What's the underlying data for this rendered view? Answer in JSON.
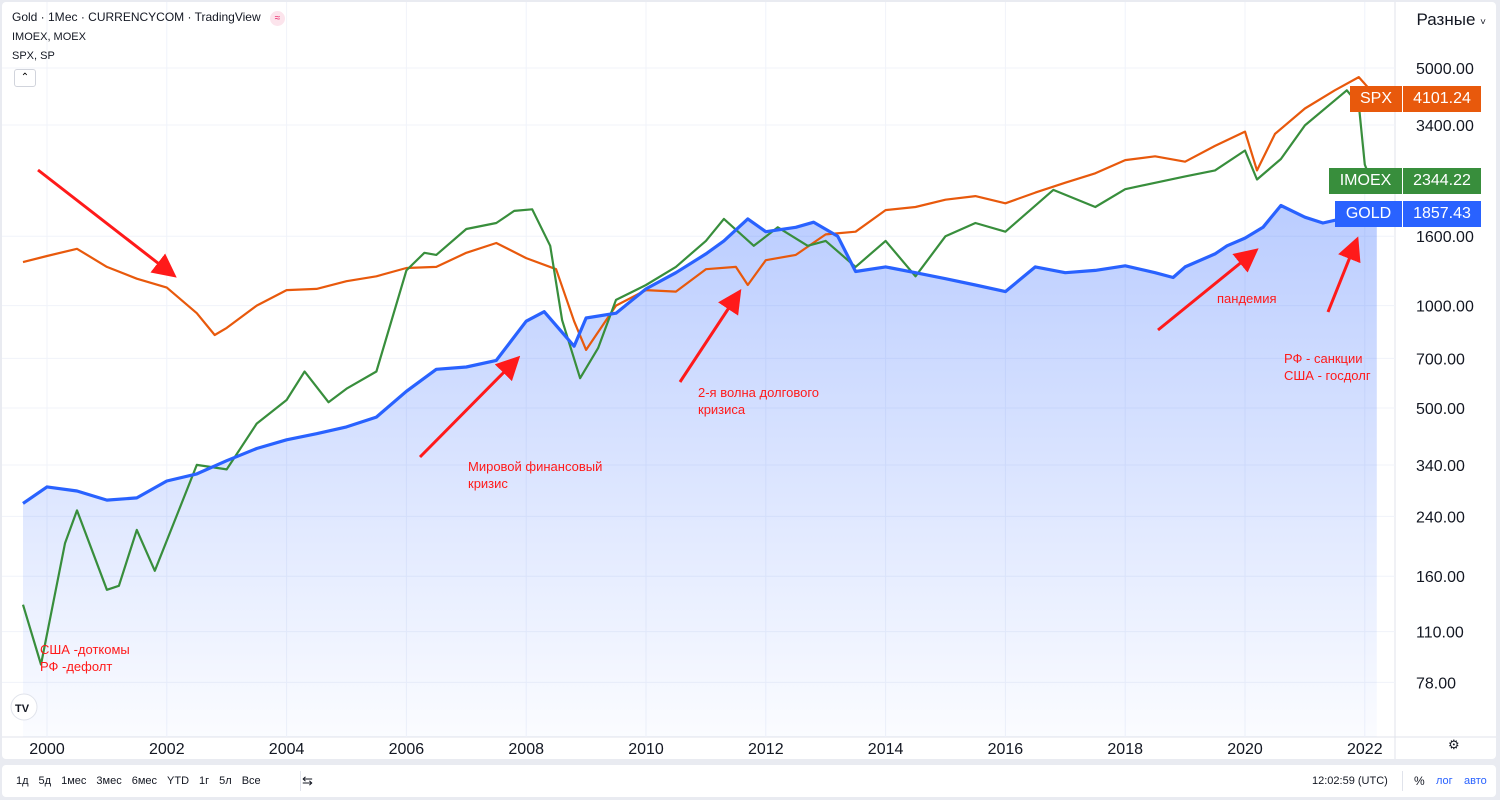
{
  "legend": {
    "main": "Gold · 1Мес · CURRENCYCOM · TradingView",
    "series2": "IMOEX, MOEX",
    "series3": "SPX, SP",
    "scale_mode": "Разные"
  },
  "colors": {
    "gold": "#2962ff",
    "spx": "#e8590c",
    "imoex": "#388e3c",
    "annotation": "#ff1a1a"
  },
  "chart_data": {
    "type": "line",
    "y_scale": "log",
    "ylim": [
      70,
      5600
    ],
    "xlim": [
      1999.55,
      2022.5
    ],
    "y_ticks": [
      "5000.00",
      "3400.00",
      "1600.00",
      "1000.00",
      "700.00",
      "500.00",
      "340.00",
      "240.00",
      "160.00",
      "110.00",
      "78.00"
    ],
    "x_ticks": [
      "2000",
      "2002",
      "2004",
      "2006",
      "2008",
      "2010",
      "2012",
      "2014",
      "2016",
      "2018",
      "2020",
      "2022"
    ],
    "grid": true,
    "series": [
      {
        "name": "GOLD",
        "last": "1857.43",
        "color": "#2962ff",
        "x": [
          1999.6,
          2000,
          2000.5,
          2001,
          2001.5,
          2002,
          2002.5,
          2003,
          2003.5,
          2004,
          2004.5,
          2005,
          2005.5,
          2006,
          2006.5,
          2007,
          2007.5,
          2008,
          2008.3,
          2008.8,
          2009,
          2009.5,
          2010,
          2010.5,
          2011,
          2011.3,
          2011.7,
          2012,
          2012.5,
          2012.8,
          2013.2,
          2013.5,
          2014,
          2014.5,
          2015,
          2015.5,
          2016,
          2016.5,
          2017,
          2017.5,
          2018,
          2018.5,
          2018.8,
          2019,
          2019.5,
          2019.7,
          2020,
          2020.3,
          2020.6,
          2021,
          2021.3,
          2021.6,
          2022,
          2022.2
        ],
        "values": [
          262,
          293,
          285,
          268,
          272,
          305,
          320,
          350,
          380,
          403,
          420,
          440,
          470,
          560,
          650,
          660,
          690,
          900,
          960,
          760,
          920,
          950,
          1120,
          1250,
          1420,
          1550,
          1800,
          1650,
          1700,
          1760,
          1600,
          1260,
          1300,
          1250,
          1200,
          1150,
          1100,
          1300,
          1250,
          1270,
          1310,
          1250,
          1210,
          1300,
          1420,
          1500,
          1580,
          1700,
          1970,
          1820,
          1750,
          1800,
          1800,
          1857
        ]
      },
      {
        "name": "SPX",
        "last": "4101.24",
        "color": "#e8590c",
        "x": [
          1999.6,
          2000,
          2000.5,
          2001,
          2001.5,
          2002,
          2002.5,
          2002.8,
          2003,
          2003.5,
          2004,
          2004.5,
          2005,
          2005.5,
          2006,
          2006.5,
          2007,
          2007.5,
          2008,
          2008.5,
          2008.8,
          2009,
          2009.5,
          2010,
          2010.5,
          2011,
          2011.5,
          2011.7,
          2012,
          2012.5,
          2013,
          2013.5,
          2014,
          2014.5,
          2015,
          2015.5,
          2016,
          2016.5,
          2017,
          2017.5,
          2018,
          2018.5,
          2019,
          2019.5,
          2020,
          2020.2,
          2020.5,
          2021,
          2021.5,
          2021.9,
          2022.2
        ],
        "values": [
          1343,
          1400,
          1470,
          1300,
          1200,
          1130,
          950,
          820,
          860,
          1000,
          1111,
          1120,
          1180,
          1220,
          1290,
          1300,
          1430,
          1528,
          1380,
          1280,
          900,
          741,
          1000,
          1111,
          1100,
          1280,
          1300,
          1150,
          1360,
          1410,
          1620,
          1650,
          1910,
          1950,
          2050,
          2100,
          2000,
          2150,
          2300,
          2450,
          2680,
          2750,
          2650,
          2950,
          3250,
          2500,
          3200,
          3800,
          4300,
          4700,
          4101
        ]
      },
      {
        "name": "IMOEX",
        "last": "2344.22",
        "color": "#388e3c",
        "x": [
          1999.6,
          1999.9,
          2000.3,
          2000.5,
          2001,
          2001.2,
          2001.5,
          2001.8,
          2002.2,
          2002.5,
          2003,
          2003.5,
          2004,
          2004.3,
          2004.7,
          2005,
          2005.5,
          2006,
          2006.3,
          2006.5,
          2007,
          2007.5,
          2007.8,
          2008.1,
          2008.4,
          2008.6,
          2008.9,
          2009.2,
          2009.5,
          2010,
          2010.5,
          2011,
          2011.3,
          2011.8,
          2012.2,
          2012.7,
          2013,
          2013.5,
          2014,
          2014.5,
          2015,
          2015.5,
          2016,
          2016.8,
          2017.5,
          2018,
          2019,
          2019.5,
          2020,
          2020.2,
          2020.6,
          2021,
          2021.7,
          2021.9,
          2022,
          2022.1
        ],
        "values": [
          132,
          88,
          200,
          250,
          146,
          150,
          219,
          166,
          250,
          340,
          330,
          450,
          528,
          640,
          520,
          570,
          640,
          1270,
          1430,
          1410,
          1680,
          1750,
          1900,
          1920,
          1500,
          907,
          612,
          750,
          1040,
          1150,
          1300,
          1550,
          1800,
          1500,
          1700,
          1500,
          1550,
          1300,
          1550,
          1220,
          1600,
          1750,
          1650,
          2190,
          1950,
          2200,
          2400,
          2500,
          2860,
          2350,
          2700,
          3390,
          4300,
          3900,
          2600,
          2344
        ]
      }
    ],
    "annotations": [
      "США -доткомы\nРФ -дефолт",
      "Мировой финансовый\nкризис",
      "2-я волна долгового\nкризиса",
      "пандемия",
      "РФ - санкции\nСША - госдолг"
    ]
  },
  "toolbar": {
    "ranges": [
      "1д",
      "5д",
      "1мес",
      "3мес",
      "6мес",
      "YTD",
      "1г",
      "5л",
      "Все"
    ],
    "time": "12:02:59 (UTC)",
    "percent": "%",
    "log": "лог",
    "auto": "авто"
  }
}
